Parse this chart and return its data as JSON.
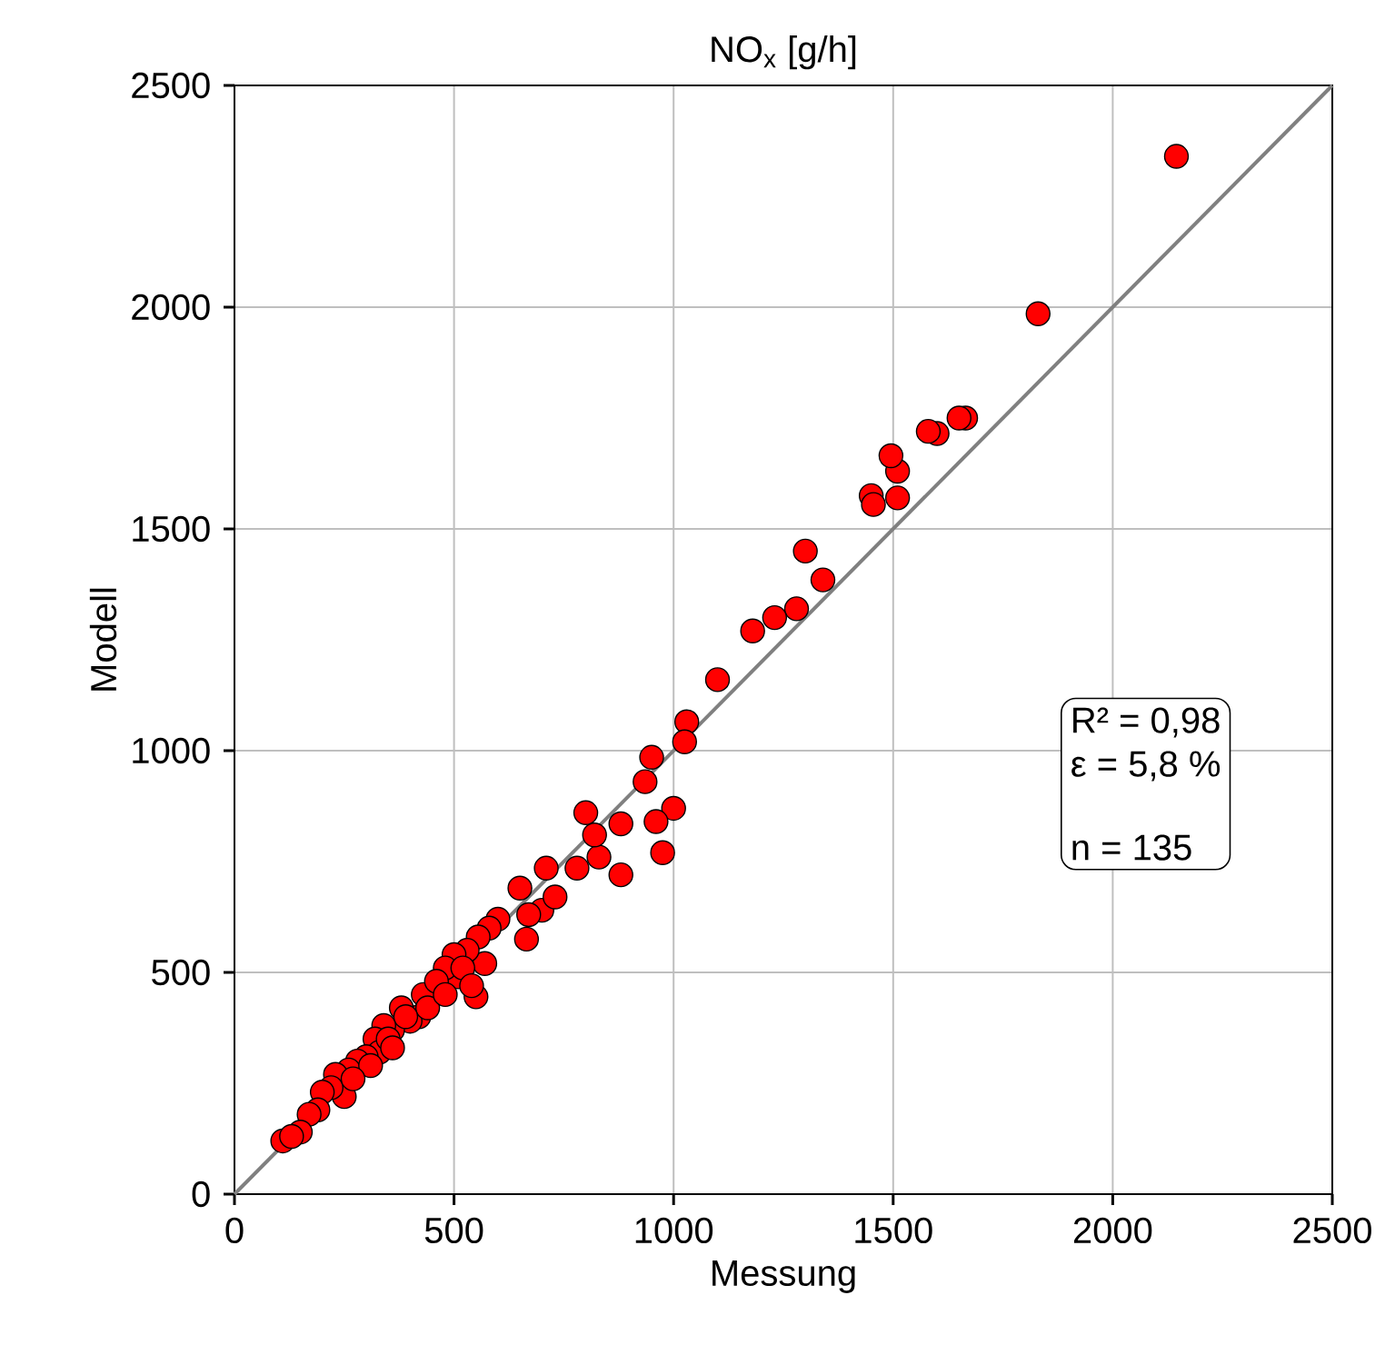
{
  "chart_data": {
    "type": "scatter",
    "title": "NO$_{x}$ [g/h]",
    "xlabel": "Messung",
    "ylabel": "Modell",
    "xlim": [
      0,
      2500
    ],
    "ylim": [
      0,
      2500
    ],
    "xticks": [
      0,
      500,
      1000,
      1500,
      2000,
      2500
    ],
    "yticks": [
      0,
      500,
      1000,
      1500,
      2000,
      2500
    ],
    "grid": true,
    "marker": "circle",
    "annotations": [
      "R² = 0,98",
      "ε = 5,8 %",
      "n = 135"
    ],
    "series": [
      {
        "type": "line",
        "color": "#808080",
        "marker": "none",
        "x": [
          0,
          2500
        ],
        "values": [
          0,
          2500
        ]
      },
      {
        "color": "#ff0000",
        "x": [
          2145,
          1830,
          1665,
          1650,
          1600,
          1580,
          1510,
          1495,
          1510,
          1450,
          1455,
          1300,
          1340,
          1280,
          1230,
          1180,
          1100,
          1030,
          1025,
          1000,
          950,
          935,
          960,
          975,
          880,
          880,
          800,
          830,
          820,
          780,
          710,
          700,
          730,
          670,
          665,
          650,
          600,
          580,
          570,
          550,
          555,
          530,
          510,
          500,
          480,
          430,
          420,
          400,
          380,
          360,
          340,
          320,
          330,
          300,
          280,
          260,
          250,
          230,
          220,
          200,
          190,
          170,
          150,
          110,
          130,
          350,
          440,
          460,
          520,
          540,
          480,
          360,
          310,
          270,
          390
        ],
        "values": [
          2340,
          1985,
          1750,
          1750,
          1715,
          1720,
          1630,
          1665,
          1570,
          1575,
          1555,
          1450,
          1385,
          1320,
          1300,
          1270,
          1160,
          1065,
          1020,
          870,
          985,
          930,
          840,
          770,
          835,
          720,
          860,
          760,
          810,
          735,
          735,
          640,
          670,
          630,
          575,
          690,
          620,
          600,
          520,
          445,
          580,
          550,
          490,
          540,
          510,
          450,
          400,
          390,
          420,
          370,
          380,
          350,
          320,
          310,
          300,
          280,
          220,
          270,
          240,
          230,
          190,
          180,
          140,
          120,
          130,
          350,
          420,
          480,
          510,
          470,
          450,
          330,
          290,
          260,
          400
        ]
      }
    ]
  }
}
